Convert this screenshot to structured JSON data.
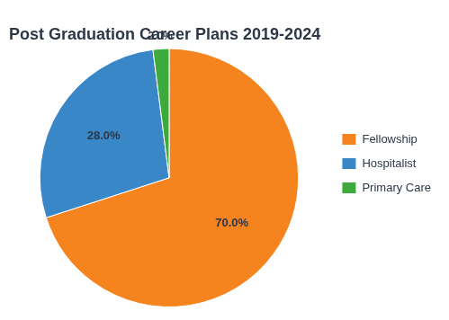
{
  "chart_data": {
    "type": "pie",
    "title": "Post Graduation Career Plans 2019-2024",
    "categories": [
      "Fellowship",
      "Hospitalist",
      "Primary Care"
    ],
    "values": [
      70.0,
      28.0,
      2.0
    ],
    "value_labels": [
      "70.0%",
      "28.0%",
      "2.0%"
    ],
    "colors": [
      "#f5841f",
      "#3a87c8",
      "#3daa3d"
    ],
    "data_labels": true,
    "legend": "right"
  }
}
